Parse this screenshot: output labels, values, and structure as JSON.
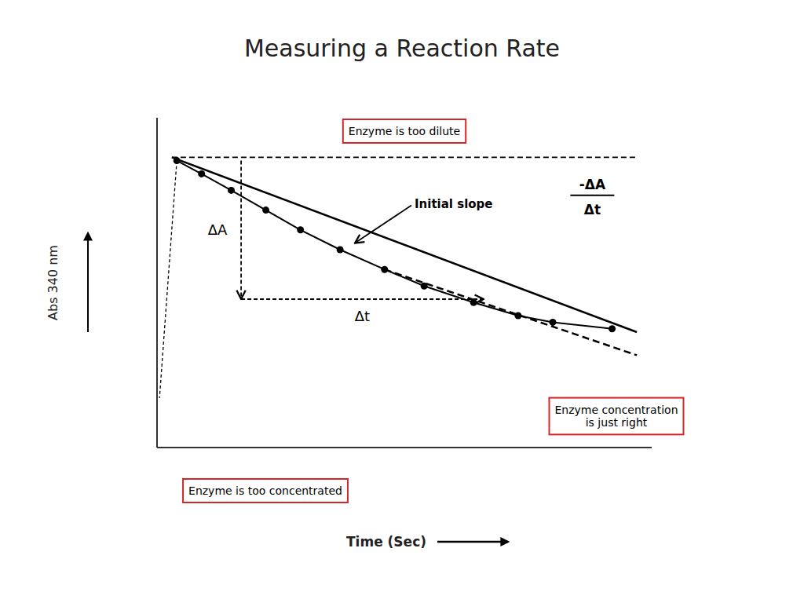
{
  "chart_data": {
    "type": "line",
    "title": "Measuring a Reaction Rate",
    "x_label": "Time (Sec)",
    "y_label": "Abs 340 nm",
    "xlim": [
      0,
      10
    ],
    "ylim": [
      0,
      10
    ],
    "xticks": [],
    "yticks": [],
    "tick_labels": false,
    "grid": false,
    "series": [
      {
        "x": [
          0.3,
          9.7
        ],
        "values": [
          8.8,
          8.8
        ],
        "line_style": "dashed"
      },
      {
        "x": [
          0.3,
          9.7
        ],
        "values": [
          8.8,
          3.5
        ],
        "line_style": "solid"
      },
      {
        "x": [
          0.4,
          0.9,
          1.5,
          2.2,
          2.9,
          3.7,
          4.6,
          5.4,
          6.4,
          7.3,
          8.0,
          9.2
        ],
        "values": [
          8.7,
          8.3,
          7.8,
          7.2,
          6.6,
          6.0,
          5.4,
          4.9,
          4.4,
          4.0,
          3.8,
          3.6
        ],
        "line_style": "solid",
        "marker": "circle"
      },
      {
        "x": [
          4.6,
          9.7
        ],
        "values": [
          5.4,
          2.8
        ],
        "line_style": "dashed"
      },
      {
        "x": [
          1.7,
          1.7
        ],
        "values": [
          8.7,
          4.5
        ],
        "line_style": "dashed",
        "marker": "arrow"
      },
      {
        "x": [
          1.7,
          6.6
        ],
        "values": [
          4.5,
          4.5
        ],
        "line_style": "dashed",
        "marker": "arrow"
      },
      {
        "x": [
          0.4,
          0.05
        ],
        "values": [
          8.7,
          1.5
        ],
        "line_style": "dashed"
      }
    ],
    "annotations": [
      {
        "text": "ΔA"
      },
      {
        "text": "Δt"
      },
      {
        "text": "Initial slope",
        "x": 4.0,
        "y": 6.2
      },
      {
        "text": "-ΔA"
      },
      {
        "text": "Δt"
      },
      {
        "text": "Enzyme is too dilute"
      },
      {
        "text": "Enzyme is too concentrated"
      },
      {
        "text": "Enzyme concentration\nis just right"
      }
    ]
  }
}
